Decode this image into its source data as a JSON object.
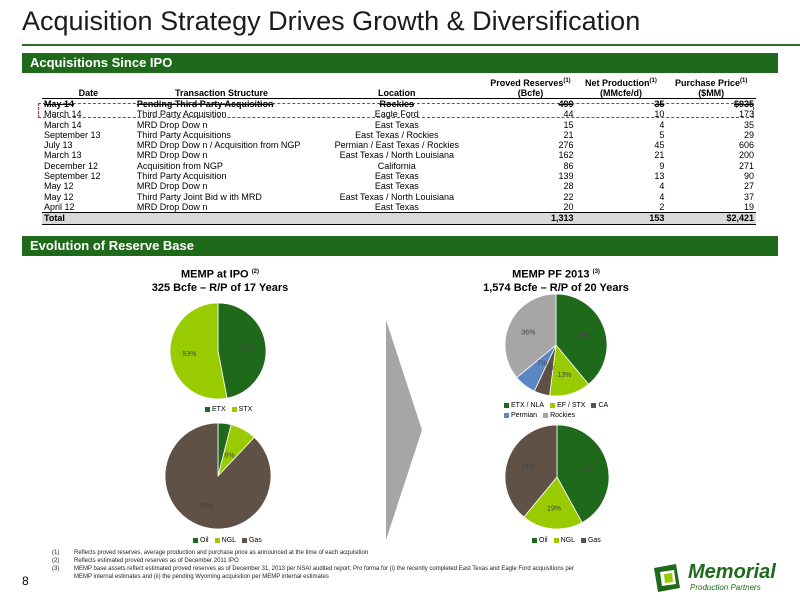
{
  "title": "Acquisition Strategy Drives Growth & Diversification",
  "section1": "Acquisitions Since IPO",
  "section2": "Evolution of Reserve Base",
  "table": {
    "headers": {
      "date": "Date",
      "structure": "Transaction Structure",
      "location": "Location",
      "reserves_1": "Proved Reserves",
      "reserves_2": "(Bcfe)",
      "production_1": "Net Production",
      "production_2": "(MMcfe/d)",
      "price_1": "Purchase Price",
      "price_2": "($MM)",
      "note": "(1)"
    },
    "rows": [
      {
        "date": "May 14",
        "structure": "Pending Third Party Acquisition",
        "location": "Rockies",
        "reserves": "499",
        "production": "35",
        "price": "$935"
      },
      {
        "date": "March 14",
        "structure": "Third Party Acquisition",
        "location": "Eagle Ford",
        "reserves": "44",
        "production": "10",
        "price": "173"
      },
      {
        "date": "March 14",
        "structure": "MRD Drop Dow n",
        "location": "East Texas",
        "reserves": "15",
        "production": "4",
        "price": "35"
      },
      {
        "date": "September 13",
        "structure": "Third Party Acquisitions",
        "location": "East Texas / Rockies",
        "reserves": "21",
        "production": "5",
        "price": "29"
      },
      {
        "date": "July 13",
        "structure": "MRD Drop Dow n / Acquisition from NGP",
        "location": "Permian / East Texas / Rockies",
        "reserves": "276",
        "production": "45",
        "price": "606"
      },
      {
        "date": "March 13",
        "structure": "MRD Drop Dow n",
        "location": "East Texas / North Louisiana",
        "reserves": "162",
        "production": "21",
        "price": "200"
      },
      {
        "date": "December 12",
        "structure": "Acquisition from NGP",
        "location": "California",
        "reserves": "86",
        "production": "9",
        "price": "271"
      },
      {
        "date": "September 12",
        "structure": "Third Party Acquisition",
        "location": "East Texas",
        "reserves": "139",
        "production": "13",
        "price": "90"
      },
      {
        "date": "May 12",
        "structure": "MRD Drop Dow n",
        "location": "East Texas",
        "reserves": "28",
        "production": "4",
        "price": "27"
      },
      {
        "date": "May 12",
        "structure": "Third Party Joint Bid w ith MRD",
        "location": "East Texas / North Louisiana",
        "reserves": "22",
        "production": "4",
        "price": "37"
      },
      {
        "date": "April 12",
        "structure": "MRD Drop Dow n",
        "location": "East Texas",
        "reserves": "20",
        "production": "2",
        "price": "19"
      }
    ],
    "total": {
      "label": "Total",
      "reserves": "1,313",
      "production": "153",
      "price": "$2,421"
    }
  },
  "left_title": {
    "line1": "MEMP at IPO",
    "note": "(2)",
    "line2": "325 Bcfe – R/P of 17 Years"
  },
  "right_title": {
    "line1": "MEMP PF 2013",
    "note": "(3)",
    "line2": "1,574 Bcfe – R/P of 20 Years"
  },
  "chart_data": [
    {
      "type": "pie",
      "name": "ipo-region",
      "slices": [
        {
          "label": "ETX",
          "value": 47,
          "text": "47%",
          "color": "#1f6a1a"
        },
        {
          "label": "STX",
          "value": 53,
          "text": "53%",
          "color": "#99cc00"
        }
      ]
    },
    {
      "type": "pie",
      "name": "ipo-product",
      "slices": [
        {
          "label": "Oil",
          "value": 4,
          "text": "4%",
          "color": "#1f6a1a"
        },
        {
          "label": "NGL",
          "value": 8,
          "text": "8%",
          "color": "#99cc00"
        },
        {
          "label": "Gas",
          "value": 88,
          "text": "88%",
          "color": "#5f5146"
        }
      ]
    },
    {
      "type": "pie",
      "name": "pf-region",
      "slices": [
        {
          "label": "ETX / NLA",
          "value": 39,
          "text": "39%",
          "color": "#1f6a1a"
        },
        {
          "label": "EF / STX",
          "value": 13,
          "text": "13%",
          "color": "#99cc00"
        },
        {
          "label": "CA",
          "value": 5,
          "text": "5%",
          "color": "#5f5146"
        },
        {
          "label": "Permian",
          "value": 7,
          "text": "7%",
          "color": "#5b87c5"
        },
        {
          "label": "Rockies",
          "value": 36,
          "text": "36%",
          "color": "#a6a6a6"
        }
      ]
    },
    {
      "type": "pie",
      "name": "pf-product",
      "slices": [
        {
          "label": "Oil",
          "value": 42,
          "text": "42%",
          "color": "#1f6a1a"
        },
        {
          "label": "NGL",
          "value": 19,
          "text": "19%",
          "color": "#99cc00"
        },
        {
          "label": "Gas",
          "value": 39,
          "text": "39%",
          "color": "#5f5146"
        }
      ]
    }
  ],
  "footnotes": [
    {
      "num": "(1)",
      "text": "Reflects proved reserves, average production and purchase price as announced at the time of each acquisition"
    },
    {
      "num": "(2)",
      "text": "Reflects estimated proved reserves as of December 2011 IPO"
    },
    {
      "num": "(3)",
      "text": "MEMP base assets reflect estimated proved reserves as of December 31, 2013 per NSAI audited report; Pro forma for (i) the recently completed East Texas and Eagle Ford acquisitions per"
    },
    {
      "num": "",
      "text": "MEMP internal estimates and (ii) the pending Wyoming acquisition per MEMP internal estimates"
    }
  ],
  "page_number": "8",
  "logo": {
    "line1": "Memorial",
    "line2": "Production Partners"
  }
}
